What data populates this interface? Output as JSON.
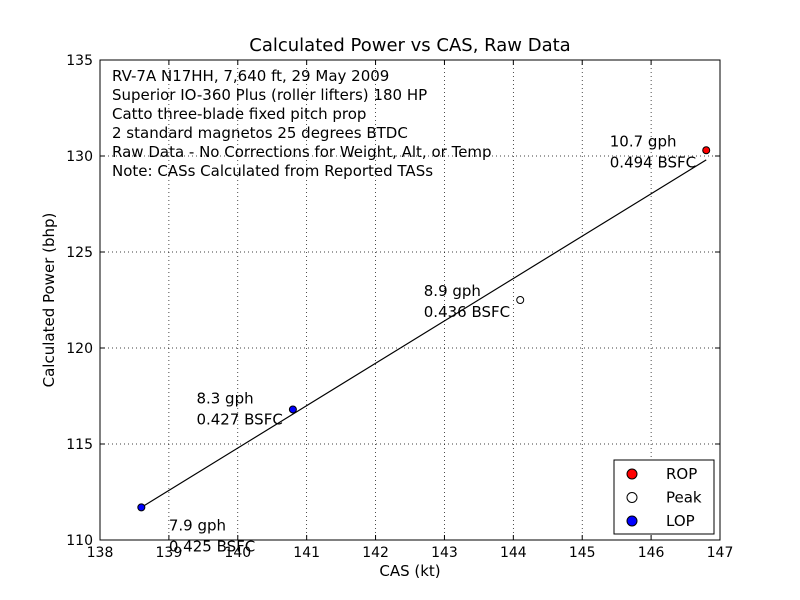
{
  "chart_data": {
    "type": "scatter",
    "title": "Calculated Power vs CAS, Raw Data",
    "xlabel": "CAS (kt)",
    "ylabel": "Calculated Power (bhp)",
    "xlim": [
      138,
      147
    ],
    "ylim": [
      110,
      135
    ],
    "xticks": [
      138,
      139,
      140,
      141,
      142,
      143,
      144,
      145,
      146,
      147
    ],
    "yticks": [
      110,
      115,
      120,
      125,
      130,
      135
    ],
    "grid": true,
    "legend_position": "lower-right",
    "notes": [
      "RV-7A N17HH, 7,640 ft, 29 May 2009",
      "Superior IO-360 Plus (roller lifters) 180 HP",
      "Catto three-blade fixed pitch prop",
      "2 standard magnetos 25 degrees BTDC",
      "Raw Data - No Corrections for Weight, Alt, or Temp",
      "Note: CASs Calculated from Reported TASs"
    ],
    "series": [
      {
        "name": "ROP",
        "color": "#ff0000",
        "points": [
          {
            "x": 146.8,
            "y": 130.3
          }
        ]
      },
      {
        "name": "Peak",
        "color": "#ffffff",
        "points": [
          {
            "x": 144.1,
            "y": 122.5
          }
        ]
      },
      {
        "name": "LOP",
        "color": "#0000ff",
        "points": [
          {
            "x": 138.6,
            "y": 111.7
          },
          {
            "x": 140.8,
            "y": 116.8
          }
        ]
      }
    ],
    "fit_line": {
      "x": [
        138.6,
        146.8
      ],
      "y": [
        111.7,
        129.8
      ],
      "color": "#000000"
    },
    "annotations": [
      {
        "lines": [
          "10.7 gph",
          "0.494 BSFC"
        ],
        "x": 145.4,
        "y": 130.5
      },
      {
        "lines": [
          "8.9 gph",
          "0.436 BSFC"
        ],
        "x": 142.7,
        "y": 122.7
      },
      {
        "lines": [
          "8.3 gph",
          "0.427 BSFC"
        ],
        "x": 139.4,
        "y": 117.1
      },
      {
        "lines": [
          "7.9 gph",
          "0.425 BSFC"
        ],
        "x": 139.0,
        "y": 110.5
      }
    ]
  }
}
